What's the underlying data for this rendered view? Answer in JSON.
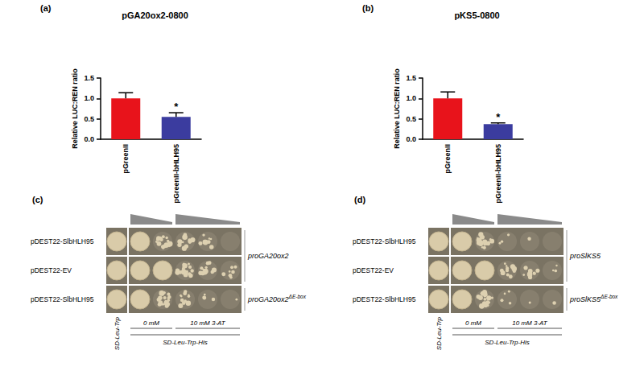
{
  "chart_data": [
    {
      "type": "bar",
      "panel_label": "(a)",
      "title": "pGA20ox2-0800",
      "y_label": "Relative LUC:REN ratio",
      "categories": [
        "pGreenII",
        "pGreenII-bHLH95"
      ],
      "values": [
        1.0,
        0.55
      ],
      "errors": [
        0.14,
        0.1
      ],
      "colors": [
        "#e8131b",
        "#3b3c9f"
      ],
      "ylim": [
        0,
        1.5
      ],
      "yticks": [
        {
          "value": 0,
          "label": "0.0"
        },
        0.5,
        {
          "value": 1,
          "label": "1.0"
        },
        1.5
      ],
      "grid": false,
      "annotations": [
        {
          "text": "*",
          "category": "pGreenII-bHLH95"
        }
      ]
    },
    {
      "type": "bar",
      "panel_label": "(b)",
      "title": "pKS5-0800",
      "y_label": "Relative LUC:REN ratio",
      "categories": [
        "pGreenII",
        "pGreenII-bHLH95"
      ],
      "values": [
        1.0,
        0.37
      ],
      "errors": [
        0.16,
        0.03
      ],
      "colors": [
        "#e8131b",
        "#3b3c9f"
      ],
      "ylim": [
        0,
        1.5
      ],
      "yticks": [
        {
          "value": 0,
          "label": "0.0"
        },
        0.5,
        {
          "value": 1,
          "label": "1.0"
        },
        1.5
      ],
      "grid": false,
      "annotations": [
        {
          "text": "*",
          "category": "pGreenII-bHLH95"
        }
      ]
    }
  ],
  "panels": [
    {
      "panel_label": "(c)",
      "rows": [
        {
          "effector": "pDEST22-SlbHLH95",
          "promoter": {
            "text": "proGA20ox2"
          }
        },
        {
          "effector": "pDEST22-EV",
          "promoter": {
            "text": "proGA20ox2"
          }
        },
        {
          "effector": "pDEST22-SlbHLH95",
          "promoter": {
            "text": "proGA20ox2",
            "superscript": "ΔE-box"
          }
        }
      ],
      "media": {
        "control": "SD-Leu-Trp",
        "concentrations": [
          "0 mM",
          "10 mM 3-AT"
        ],
        "selective": "SD-Leu-Trp-His"
      }
    },
    {
      "panel_label": "(d)",
      "rows": [
        {
          "effector": "pDEST22-SlbHLH95",
          "promoter": {
            "text": "proSlKS5"
          }
        },
        {
          "effector": "pDEST22-EV",
          "promoter": {
            "text": "proSlKS5"
          }
        },
        {
          "effector": "pDEST22-SlbHLH95",
          "promoter": {
            "text": "proSlKS5",
            "superscript": "ΔE-box"
          }
        }
      ],
      "media": {
        "control": "SD-Leu-Trp",
        "concentrations": [
          "0 mM",
          "10 mM 3-AT"
        ],
        "selective": "SD-Leu-Trp-His"
      }
    }
  ]
}
